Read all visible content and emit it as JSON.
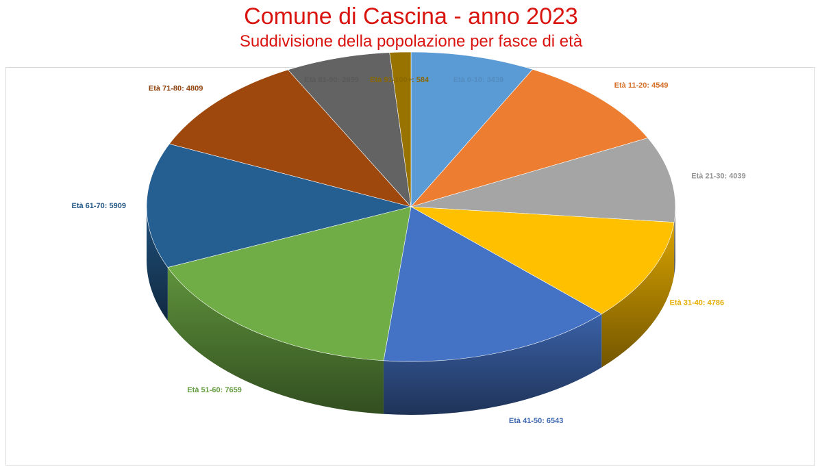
{
  "header": {
    "title": "Comune di Cascina - anno 2023",
    "subtitle": "Suddivisione della popolazione per fasce di età"
  },
  "chart_data": {
    "type": "pie",
    "style": "3d",
    "title": "Comune di Cascina - anno 2023",
    "subtitle": "Suddivisione della popolazione per fasce di età",
    "legend": "none",
    "label_separator": ":  ",
    "slices": [
      {
        "label": "Età 0-10",
        "value": 3439,
        "color": "#5b9bd5"
      },
      {
        "label": "Età 11-20",
        "value": 4549,
        "color": "#ed7d31"
      },
      {
        "label": "Età 21-30",
        "value": 4039,
        "color": "#a5a5a5"
      },
      {
        "label": "Età 31-40",
        "value": 4786,
        "color": "#ffc000"
      },
      {
        "label": "Età 41-50",
        "value": 6543,
        "color": "#4472c4"
      },
      {
        "label": "Età 51-60",
        "value": 7659,
        "color": "#70ad47"
      },
      {
        "label": "Età 61-70",
        "value": 5909,
        "color": "#255e91"
      },
      {
        "label": "Età 71-80",
        "value": 4809,
        "color": "#9e480e"
      },
      {
        "label": "Età 81-90",
        "value": 2899,
        "color": "#636363"
      },
      {
        "label": "Età 91-100+",
        "value": 584,
        "color": "#997300"
      }
    ]
  }
}
